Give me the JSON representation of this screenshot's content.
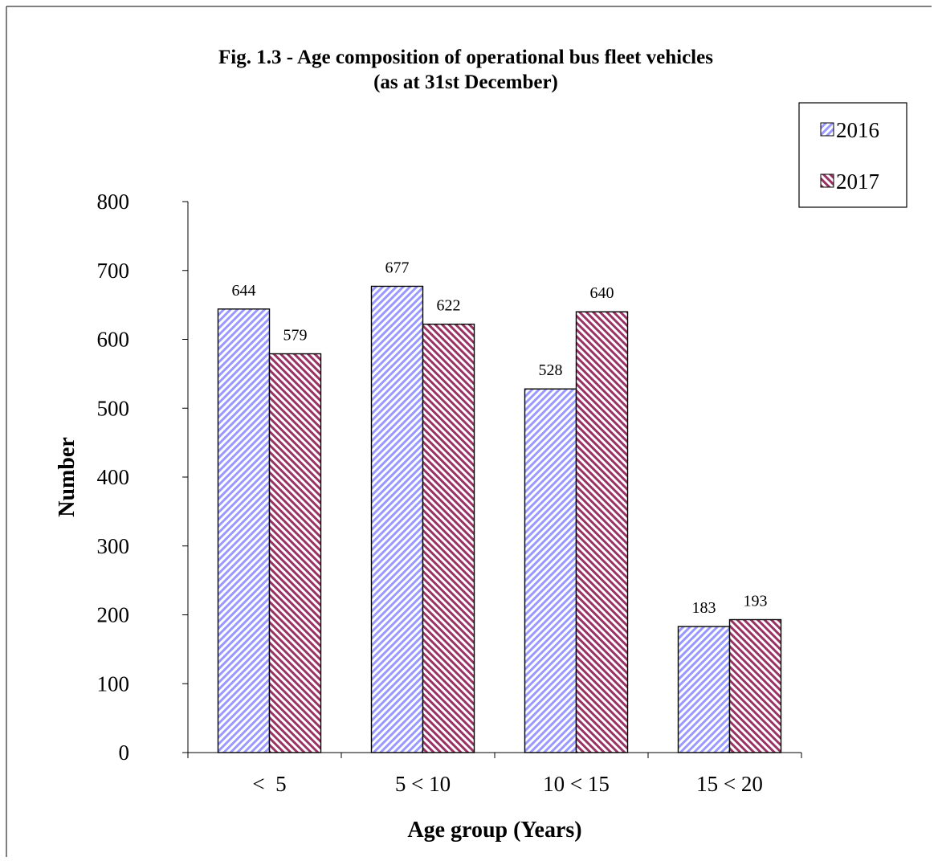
{
  "chart_data": {
    "type": "bar",
    "title": "Fig. 1.3 - Age composition of operational bus fleet vehicles",
    "subtitle": "(as at 31st December)",
    "xlabel": "Age group (Years)",
    "ylabel": "Number",
    "categories": [
      "<  5",
      "5 < 10",
      "10 < 15",
      "15 < 20"
    ],
    "series": [
      {
        "name": "2016",
        "values": [
          644,
          677,
          528,
          183
        ],
        "color": "#9999ff",
        "pattern": "diagonal-stripes"
      },
      {
        "name": "2017",
        "values": [
          579,
          622,
          640,
          193
        ],
        "color": "#993366",
        "pattern": "diagonal-stripes"
      }
    ],
    "ylim": [
      0,
      800
    ],
    "yticks": [
      0,
      100,
      200,
      300,
      400,
      500,
      600,
      700,
      800
    ],
    "grid": false,
    "legend": "top-right",
    "data_labels": true
  }
}
